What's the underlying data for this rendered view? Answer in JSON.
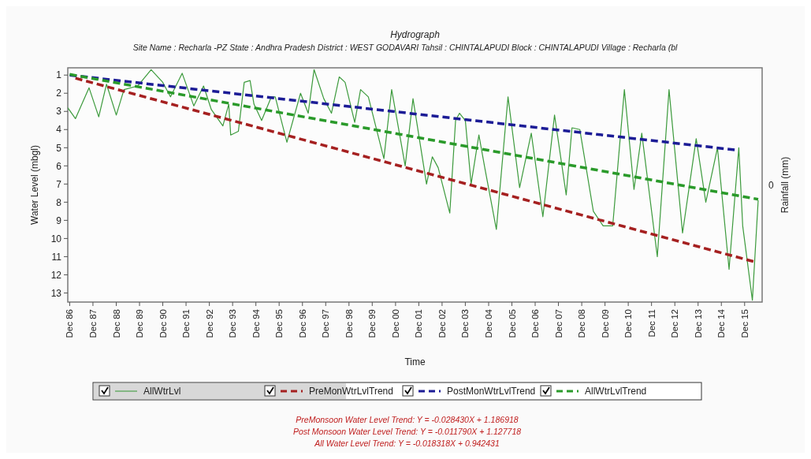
{
  "chart_data": {
    "type": "line",
    "title": "Hydrograph",
    "subtitle": "Site Name : Recharla -PZ  State : Andhra Pradesh District : WEST GODAVARI  Tahsil : CHINTALAPUDI  Block : CHINTALAPUDI Village : Recharla (bl",
    "xlabel": "Time",
    "ylabel": "Water Level (mbgl)",
    "y2label": "Rainfall (mm)",
    "annotations": [
      "0",
      "PreMonsoon Water Level Trend: Y = -0.028430X + 1.186918",
      "Post Monsoon Water Level Trend: Y = -0.011790X + 1.127718",
      "All Water Level Trend: Y = -0.018318X + 0.942431"
    ],
    "xlim": [
      "1986-11",
      "2016-09"
    ],
    "ylim": [
      13.5,
      0.6
    ],
    "xticks": [
      {
        "value": "1986-12",
        "label": "Dec 86"
      },
      {
        "value": "1987-12",
        "label": "Dec 87"
      },
      {
        "value": "1988-12",
        "label": "Dec 88"
      },
      {
        "value": "1989-12",
        "label": "Dec 89"
      },
      {
        "value": "1990-12",
        "label": "Dec 90"
      },
      {
        "value": "1991-12",
        "label": "Dec 91"
      },
      {
        "value": "1992-12",
        "label": "Dec 92"
      },
      {
        "value": "1993-12",
        "label": "Dec 93"
      },
      {
        "value": "1994-12",
        "label": "Dec 94"
      },
      {
        "value": "1995-12",
        "label": "Dec 95"
      },
      {
        "value": "1996-12",
        "label": "Dec 96"
      },
      {
        "value": "1997-12",
        "label": "Dec 97"
      },
      {
        "value": "1998-12",
        "label": "Dec 98"
      },
      {
        "value": "1999-12",
        "label": "Dec 99"
      },
      {
        "value": "2000-12",
        "label": "Dec 00"
      },
      {
        "value": "2001-12",
        "label": "Dec 01"
      },
      {
        "value": "2002-12",
        "label": "Dec 02"
      },
      {
        "value": "2003-12",
        "label": "Dec 03"
      },
      {
        "value": "2004-12",
        "label": "Dec 04"
      },
      {
        "value": "2005-12",
        "label": "Dec 05"
      },
      {
        "value": "2006-12",
        "label": "Dec 06"
      },
      {
        "value": "2007-12",
        "label": "Dec 07"
      },
      {
        "value": "2008-12",
        "label": "Dec 08"
      },
      {
        "value": "2009-12",
        "label": "Dec 09"
      },
      {
        "value": "2010-12",
        "label": "Dec 10"
      },
      {
        "value": "2011-12",
        "label": "Dec 11"
      },
      {
        "value": "2012-12",
        "label": "Dec 12"
      },
      {
        "value": "2013-12",
        "label": "Dec 13"
      },
      {
        "value": "2014-12",
        "label": "Dec 14"
      },
      {
        "value": "2015-12",
        "label": "Dec 15"
      }
    ],
    "yticks": [
      1,
      2,
      3,
      4,
      5,
      6,
      7,
      8,
      9,
      10,
      11,
      12,
      13
    ],
    "grid": false,
    "legend": "bottom",
    "marker": "none",
    "series": [
      {
        "name": "AllWtrLvl",
        "color": "#3c9a3c",
        "line_style": "solid",
        "x": [
          "1986-11",
          "1987-03",
          "1987-10",
          "1988-03",
          "1988-07",
          "1988-12",
          "1989-04",
          "1989-11",
          "1990-06",
          "1990-12",
          "1991-04",
          "1991-10",
          "1992-04",
          "1992-09",
          "1993-01",
          "1993-07",
          "1993-10",
          "1993-11",
          "1994-03",
          "1994-06",
          "1994-09",
          "1994-11",
          "1995-03",
          "1995-08",
          "1995-10",
          "1996-04",
          "1996-11",
          "1997-03",
          "1997-06",
          "1997-11",
          "1998-03",
          "1998-07",
          "1998-10",
          "1999-03",
          "1999-06",
          "1999-10",
          "2000-06",
          "2000-10",
          "2001-05",
          "2001-09",
          "2002-04",
          "2002-07",
          "2002-10",
          "2003-04",
          "2003-07",
          "2003-09",
          "2003-12",
          "2004-03",
          "2004-07",
          "2004-10",
          "2005-04",
          "2005-10",
          "2006-04",
          "2006-10",
          "2007-04",
          "2007-10",
          "2008-04",
          "2008-07",
          "2008-11",
          "2009-06",
          "2009-11",
          "2010-04",
          "2010-10",
          "2011-03",
          "2011-07",
          "2012-03",
          "2012-09",
          "2013-04",
          "2013-11",
          "2014-04",
          "2014-10",
          "2015-04",
          "2015-09",
          "2015-11",
          "2016-04",
          "2016-07"
        ],
        "values": [
          2.8,
          3.4,
          1.7,
          3.3,
          1.5,
          3.2,
          1.8,
          1.6,
          0.7,
          1.4,
          2.2,
          0.9,
          2.7,
          1.6,
          2.9,
          3.8,
          2.6,
          4.3,
          4.1,
          1.4,
          1.3,
          2.6,
          3.5,
          2.2,
          2.2,
          4.7,
          2.0,
          3.1,
          0.7,
          2.3,
          3.1,
          1.1,
          1.4,
          3.6,
          1.8,
          2.2,
          5.6,
          1.8,
          6.0,
          2.3,
          7.0,
          5.5,
          6.1,
          8.6,
          3.5,
          3.1,
          3.5,
          7.0,
          4.3,
          6.1,
          9.5,
          2.2,
          7.2,
          4.2,
          8.8,
          3.2,
          7.6,
          3.9,
          4.0,
          8.5,
          9.3,
          9.3,
          1.8,
          7.3,
          4.2,
          11.0,
          1.8,
          9.7,
          4.5,
          8.0,
          5.0,
          11.7,
          5.0,
          9.3,
          13.4,
          7.9
        ]
      },
      {
        "name": "PreMonWtrLvlTrend",
        "color": "#a52020",
        "line_style": "dashed",
        "x": [
          "1987-03",
          "2016-05"
        ],
        "values": [
          1.17,
          11.28
        ]
      },
      {
        "name": "PostMonWtrLvlTrend",
        "color": "#1c1c96",
        "line_style": "dashed",
        "x": [
          "1986-12",
          "2015-08"
        ],
        "values": [
          1.0,
          5.13
        ]
      },
      {
        "name": "AllWtrLvlTrend",
        "color": "#2a9a2a",
        "line_style": "dashed",
        "x": [
          "1986-12",
          "2016-07"
        ],
        "values": [
          0.96,
          7.84
        ]
      }
    ]
  }
}
